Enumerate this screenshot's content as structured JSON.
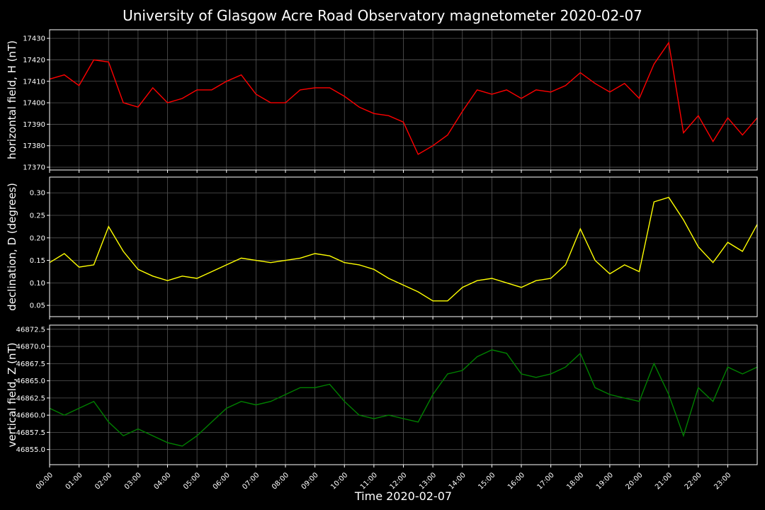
{
  "chart_data": [
    {
      "type": "line",
      "title": "University of Glasgow Acre Road Observatory magnetometer 2020-02-07",
      "ylabel": "horizontal field, H (nT)",
      "color": "#ff0000",
      "grid": true,
      "xlim": [
        0,
        24
      ],
      "ylim": [
        17368.7,
        17434
      ],
      "yticks": [
        17370,
        17380,
        17390,
        17400,
        17410,
        17420,
        17430
      ],
      "x": [
        0,
        0.5,
        1,
        1.5,
        2,
        2.5,
        3,
        3.5,
        4,
        4.5,
        5,
        5.5,
        6,
        6.5,
        7,
        7.5,
        8,
        8.5,
        9,
        9.5,
        10,
        10.5,
        11,
        11.5,
        12,
        12.5,
        13,
        13.5,
        14,
        14.5,
        15,
        15.5,
        16,
        16.5,
        17,
        17.5,
        18,
        18.5,
        19,
        19.5,
        20,
        20.5,
        21,
        21.5,
        22,
        22.5,
        23,
        23.5,
        24
      ],
      "values": [
        17411,
        17413,
        17408,
        17420,
        17419,
        17400,
        17398,
        17407,
        17400,
        17402,
        17406,
        17406,
        17410,
        17413,
        17404,
        17400,
        17400,
        17406,
        17407,
        17407,
        17403,
        17398,
        17395,
        17394,
        17391,
        17376,
        17380,
        17385,
        17396,
        17406,
        17404,
        17406,
        17402,
        17406,
        17405,
        17408,
        17414,
        17409,
        17405,
        17409,
        17402,
        17418,
        17428,
        17386,
        17394,
        17382,
        17393,
        17385,
        17393
      ]
    },
    {
      "type": "line",
      "ylabel": "declination, D (degrees)",
      "color": "#ffff00",
      "grid": true,
      "xlim": [
        0,
        24
      ],
      "ylim": [
        0.025,
        0.335
      ],
      "yticks": [
        0.05,
        {
          "value": 0.1,
          "label": "0.10"
        },
        0.15,
        {
          "value": 0.2,
          "label": "0.20"
        },
        0.25,
        {
          "value": 0.3,
          "label": "0.30"
        }
      ],
      "x": [
        0,
        0.5,
        1,
        1.5,
        2,
        2.5,
        3,
        3.5,
        4,
        4.5,
        5,
        5.5,
        6,
        6.5,
        7,
        7.5,
        8,
        8.5,
        9,
        9.5,
        10,
        10.5,
        11,
        11.5,
        12,
        12.5,
        13,
        13.5,
        14,
        14.5,
        15,
        15.5,
        16,
        16.5,
        17,
        17.5,
        18,
        18.5,
        19,
        19.5,
        20,
        20.5,
        21,
        21.5,
        22,
        22.5,
        23,
        23.5,
        24
      ],
      "values": [
        0.145,
        0.165,
        0.135,
        0.14,
        0.225,
        0.17,
        0.13,
        0.115,
        0.105,
        0.115,
        0.11,
        0.125,
        0.14,
        0.155,
        0.15,
        0.145,
        0.15,
        0.155,
        0.165,
        0.16,
        0.145,
        0.14,
        0.13,
        0.11,
        0.095,
        0.08,
        0.06,
        0.06,
        0.09,
        0.105,
        0.11,
        0.1,
        0.09,
        0.105,
        0.11,
        0.14,
        0.22,
        0.15,
        0.12,
        0.14,
        0.125,
        0.28,
        0.29,
        0.24,
        0.18,
        0.145,
        0.19,
        0.17,
        0.23
      ]
    },
    {
      "type": "line",
      "ylabel": "vertical field, Z (nT)",
      "xlabel": "Time 2020-02-07",
      "color": "#008000",
      "grid": true,
      "xlim": [
        0,
        24
      ],
      "ylim": [
        46852.8,
        46873.1
      ],
      "yticks": [
        {
          "value": 46855,
          "label": "46855.0"
        },
        46857.5,
        {
          "value": 46860,
          "label": "46860.0"
        },
        46862.5,
        {
          "value": 46865,
          "label": "46865.0"
        },
        46867.5,
        {
          "value": 46870,
          "label": "46870.0"
        },
        46872.5
      ],
      "xticks": [
        {
          "value": 0,
          "label": "00:00"
        },
        {
          "value": 1,
          "label": "01:00"
        },
        {
          "value": 2,
          "label": "02:00"
        },
        {
          "value": 3,
          "label": "03:00"
        },
        {
          "value": 4,
          "label": "04:00"
        },
        {
          "value": 5,
          "label": "05:00"
        },
        {
          "value": 6,
          "label": "06:00"
        },
        {
          "value": 7,
          "label": "07:00"
        },
        {
          "value": 8,
          "label": "08:00"
        },
        {
          "value": 9,
          "label": "09:00"
        },
        {
          "value": 10,
          "label": "10:00"
        },
        {
          "value": 11,
          "label": "11:00"
        },
        {
          "value": 12,
          "label": "12:00"
        },
        {
          "value": 13,
          "label": "13:00"
        },
        {
          "value": 14,
          "label": "14:00"
        },
        {
          "value": 15,
          "label": "15:00"
        },
        {
          "value": 16,
          "label": "16:00"
        },
        {
          "value": 17,
          "label": "17:00"
        },
        {
          "value": 18,
          "label": "18:00"
        },
        {
          "value": 19,
          "label": "19:00"
        },
        {
          "value": 20,
          "label": "20:00"
        },
        {
          "value": 21,
          "label": "21:00"
        },
        {
          "value": 22,
          "label": "22:00"
        },
        {
          "value": 23,
          "label": "23:00"
        }
      ],
      "x": [
        0,
        0.5,
        1,
        1.5,
        2,
        2.5,
        3,
        3.5,
        4,
        4.5,
        5,
        5.5,
        6,
        6.5,
        7,
        7.5,
        8,
        8.5,
        9,
        9.5,
        10,
        10.5,
        11,
        11.5,
        12,
        12.5,
        13,
        13.5,
        14,
        14.5,
        15,
        15.5,
        16,
        16.5,
        17,
        17.5,
        18,
        18.5,
        19,
        19.5,
        20,
        20.5,
        21,
        21.5,
        22,
        22.5,
        23,
        23.5,
        24
      ],
      "values": [
        46861,
        46860,
        46861,
        46862,
        46859,
        46857,
        46858,
        46857,
        46856,
        46855.5,
        46857,
        46859,
        46861,
        46862,
        46861.5,
        46862,
        46863,
        46864,
        46864,
        46864.5,
        46862,
        46860,
        46859.5,
        46860,
        46859.5,
        46859,
        46863,
        46866,
        46866.5,
        46868.5,
        46869.5,
        46869,
        46866,
        46865.5,
        46866,
        46867,
        46869,
        46864,
        46863,
        46862.5,
        46862,
        46867.5,
        46863,
        46857,
        46864,
        46862,
        46867,
        46866,
        46867
      ]
    }
  ]
}
